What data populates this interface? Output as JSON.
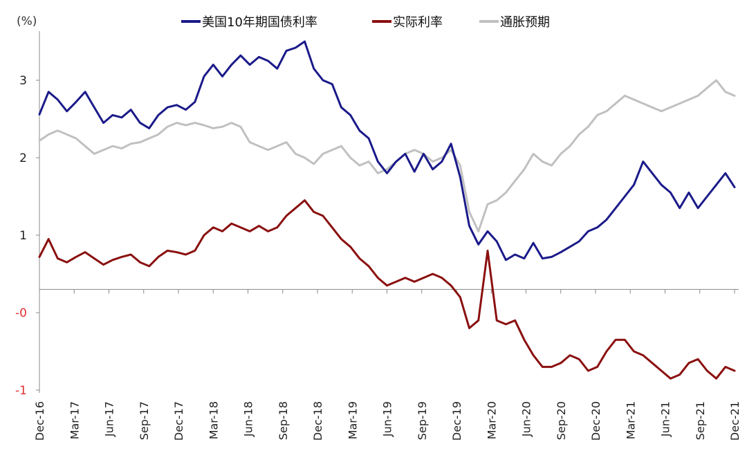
{
  "chart_data": {
    "type": "line",
    "unit_label": "(%)",
    "ylim": [
      -1,
      3.6
    ],
    "y_ticks": [
      {
        "value": 3,
        "label": "3"
      },
      {
        "value": 2,
        "label": "2"
      },
      {
        "value": 1,
        "label": "1"
      },
      {
        "value": 0,
        "label": "-0"
      },
      {
        "value": -1,
        "label": "-1"
      }
    ],
    "x_labels": [
      "Dec-16",
      "Mar-17",
      "Jun-17",
      "Sep-17",
      "Dec-17",
      "Mar-18",
      "Jun-18",
      "Sep-18",
      "Dec-18",
      "Mar-19",
      "Jun-19",
      "Sep-19",
      "Dec-19",
      "Mar-20",
      "Jun-20",
      "Sep-20",
      "Dec-20",
      "Mar-21",
      "Jun-21",
      "Sep-21",
      "Dec-21"
    ],
    "x_axis_value": 0.3,
    "legend_position": "top",
    "grid": false,
    "series": [
      {
        "name": "美国10年期国债利率",
        "color": "#1a1a8a",
        "values": [
          2.56,
          2.85,
          2.75,
          2.6,
          2.72,
          2.85,
          2.65,
          2.45,
          2.55,
          2.52,
          2.62,
          2.45,
          2.38,
          2.55,
          2.65,
          2.68,
          2.62,
          2.72,
          3.05,
          3.2,
          3.05,
          3.2,
          3.32,
          3.2,
          3.3,
          3.25,
          3.15,
          3.38,
          3.42,
          3.5,
          3.15,
          3.0,
          2.95,
          2.65,
          2.55,
          2.35,
          2.25,
          1.95,
          1.8,
          1.95,
          2.05,
          1.82,
          2.05,
          1.85,
          1.95,
          2.18,
          1.75,
          1.12,
          0.88,
          1.05,
          0.92,
          0.68,
          0.75,
          0.7,
          0.9,
          0.7,
          0.72,
          0.78,
          0.85,
          0.92,
          1.05,
          1.1,
          1.2,
          1.35,
          1.5,
          1.65,
          1.95,
          1.8,
          1.65,
          1.55,
          1.35,
          1.55,
          1.35,
          1.5,
          1.65,
          1.8,
          1.62
        ]
      },
      {
        "name": "实际利率",
        "color": "#8a0f0f",
        "values": [
          0.72,
          0.95,
          0.7,
          0.65,
          0.72,
          0.78,
          0.7,
          0.62,
          0.68,
          0.72,
          0.75,
          0.65,
          0.6,
          0.72,
          0.8,
          0.78,
          0.75,
          0.8,
          1.0,
          1.1,
          1.05,
          1.15,
          1.1,
          1.05,
          1.12,
          1.05,
          1.1,
          1.25,
          1.35,
          1.45,
          1.3,
          1.25,
          1.1,
          0.95,
          0.85,
          0.7,
          0.6,
          0.45,
          0.35,
          0.4,
          0.45,
          0.4,
          0.45,
          0.5,
          0.45,
          0.35,
          0.2,
          -0.2,
          -0.1,
          0.8,
          -0.1,
          -0.15,
          -0.1,
          -0.35,
          -0.55,
          -0.7,
          -0.7,
          -0.65,
          -0.55,
          -0.6,
          -0.75,
          -0.7,
          -0.5,
          -0.35,
          -0.35,
          -0.5,
          -0.55,
          -0.65,
          -0.75,
          -0.85,
          -0.8,
          -0.65,
          -0.6,
          -0.75,
          -0.85,
          -0.7,
          -0.75
        ]
      },
      {
        "name": "通胀预期",
        "color": "#c0c0c0",
        "values": [
          2.22,
          2.3,
          2.35,
          2.3,
          2.25,
          2.15,
          2.05,
          2.1,
          2.15,
          2.12,
          2.18,
          2.2,
          2.25,
          2.3,
          2.4,
          2.45,
          2.42,
          2.45,
          2.42,
          2.38,
          2.4,
          2.45,
          2.4,
          2.2,
          2.15,
          2.1,
          2.15,
          2.2,
          2.05,
          2.0,
          1.92,
          2.05,
          2.1,
          2.15,
          2.0,
          1.9,
          1.95,
          1.8,
          1.85,
          1.95,
          2.05,
          2.1,
          2.05,
          1.95,
          2.0,
          2.1,
          1.9,
          1.3,
          1.05,
          1.4,
          1.45,
          1.55,
          1.7,
          1.85,
          2.05,
          1.95,
          1.9,
          2.05,
          2.15,
          2.3,
          2.4,
          2.55,
          2.6,
          2.7,
          2.8,
          2.75,
          2.7,
          2.65,
          2.6,
          2.65,
          2.7,
          2.75,
          2.8,
          2.9,
          3.0,
          2.85,
          2.8
        ]
      }
    ]
  }
}
